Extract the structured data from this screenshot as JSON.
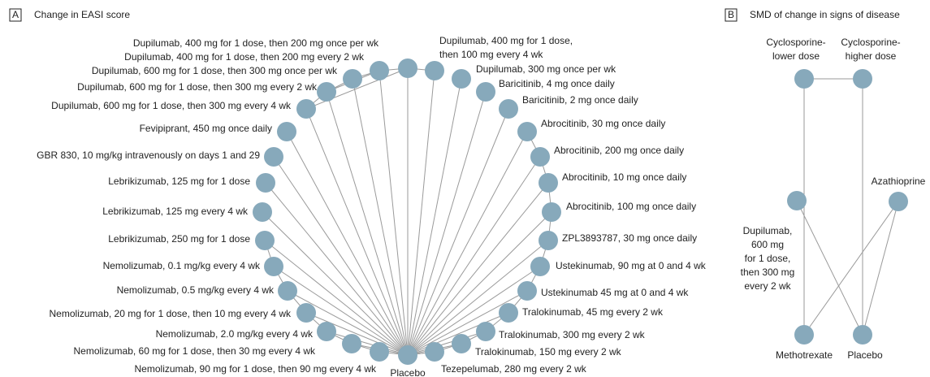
{
  "panels": [
    {
      "letter": "A",
      "title": "Change in EASI score",
      "nodes": [
        {
          "label": [
            "Placebo"
          ]
        },
        {
          "label": [
            "Nemolizumab, 90 mg for 1 dose, then 90 mg every 4 wk"
          ]
        },
        {
          "label": [
            "Nemolizumab, 60 mg for 1 dose, then 30 mg every 4 wk"
          ]
        },
        {
          "label": [
            "Nemolizumab, 2.0 mg/kg every 4 wk"
          ]
        },
        {
          "label": [
            "Nemolizumab, 20 mg for 1 dose, then 10 mg every 4 wk"
          ]
        },
        {
          "label": [
            "Nemolizumab, 0.5 mg/kg every 4 wk"
          ]
        },
        {
          "label": [
            "Nemolizumab, 0.1 mg/kg every 4 wk"
          ]
        },
        {
          "label": [
            "Lebrikizumab, 250 mg for 1 dose"
          ]
        },
        {
          "label": [
            "Lebrikizumab, 125 mg every 4 wk"
          ]
        },
        {
          "label": [
            "Lebrikizumab, 125 mg for 1 dose"
          ]
        },
        {
          "label": [
            "GBR 830, 10 mg/kg intravenously on days 1 and 29"
          ]
        },
        {
          "label": [
            "Fevipiprant, 450 mg once daily"
          ]
        },
        {
          "label": [
            "Dupilumab, 600 mg for 1 dose, then 300 mg every 4 wk"
          ]
        },
        {
          "label": [
            "Dupilumab, 600 mg for 1 dose, then 300 mg every 2 wk"
          ]
        },
        {
          "label": [
            "Dupilumab, 600 mg for 1 dose, then 300 mg once per wk"
          ]
        },
        {
          "label": [
            "Dupilumab, 400 mg for 1 dose, then 200 mg every 2 wk"
          ]
        },
        {
          "label": [
            "Dupilumab, 400 mg for 1 dose, then 200 mg once per wk"
          ]
        },
        {
          "label": [
            "Dupilumab, 400 mg for 1 dose,",
            "then 100 mg every 4 wk"
          ]
        },
        {
          "label": [
            "Dupilumab, 300 mg once per wk"
          ]
        },
        {
          "label": [
            "Baricitinib, 4 mg once daily"
          ]
        },
        {
          "label": [
            "Baricitinib, 2 mg once daily"
          ]
        },
        {
          "label": [
            "Abrocitinib, 30 mg once daily"
          ]
        },
        {
          "label": [
            "Abrocitinib, 200 mg once daily"
          ]
        },
        {
          "label": [
            "Abrocitinib, 10 mg  once daily"
          ]
        },
        {
          "label": [
            "Abrocitinib, 100 mg once daily"
          ]
        },
        {
          "label": [
            "ZPL3893787, 30 mg once daily"
          ]
        },
        {
          "label": [
            "Ustekinumab, 90 mg at 0 and 4 wk"
          ]
        },
        {
          "label": [
            "Ustekinumab 45 mg at 0 and 4 wk"
          ]
        },
        {
          "label": [
            "Tralokinumab, 45 mg every 2 wk"
          ]
        },
        {
          "label": [
            "Tralokinumab, 300 mg every 2 wk"
          ]
        },
        {
          "label": [
            "Tralokinumab, 150 mg every 2 wk"
          ]
        },
        {
          "label": [
            "Tezepelumab, 280 mg every 2 wk"
          ]
        }
      ]
    },
    {
      "letter": "B",
      "title": "SMD of change in signs of disease",
      "nodes": [
        {
          "label": [
            "Cyclosporine-",
            "lower dose"
          ]
        },
        {
          "label": [
            "Cyclosporine-",
            "higher dose"
          ]
        },
        {
          "label": [
            "Azathioprine"
          ]
        },
        {
          "label": [
            "Dupilumab,",
            "600 mg",
            "for 1 dose,",
            "then 300 mg",
            "every 2 wk"
          ]
        },
        {
          "label": [
            "Methotrexate"
          ]
        },
        {
          "label": [
            "Placebo"
          ]
        }
      ]
    }
  ]
}
